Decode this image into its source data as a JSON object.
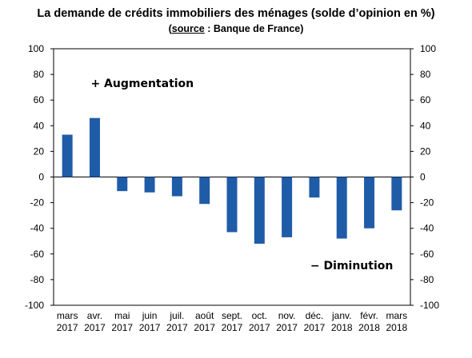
{
  "header": {
    "title": "La demande de crédits immobiliers des ménages (solde d’opinion en %)",
    "source_label": "source",
    "source_rest": " : Banque de France)",
    "source_open": "("
  },
  "colors": {
    "bar": "#1f5ca8",
    "axis": "#000000",
    "grid": "#c8c8c8"
  },
  "chart_data": {
    "type": "bar",
    "title": "La demande de crédits immobiliers des ménages (solde d’opinion en %)",
    "subtitle": "(source : Banque de France)",
    "categories": [
      [
        "mars",
        "2017"
      ],
      [
        "avr.",
        "2017"
      ],
      [
        "mai",
        "2017"
      ],
      [
        "juin",
        "2017"
      ],
      [
        "juil.",
        "2017"
      ],
      [
        "août",
        "2017"
      ],
      [
        "sept.",
        "2017"
      ],
      [
        "oct.",
        "2017"
      ],
      [
        "nov.",
        "2017"
      ],
      [
        "déc.",
        "2017"
      ],
      [
        "janv.",
        "2018"
      ],
      [
        "févr.",
        "2018"
      ],
      [
        "mars",
        "2018"
      ]
    ],
    "values": [
      33,
      46,
      -11,
      -12,
      -15,
      -21,
      -43,
      -52,
      -47,
      -16,
      -48,
      -40,
      -26
    ],
    "ylim": [
      -100,
      100
    ],
    "yticks": [
      100,
      80,
      60,
      40,
      20,
      0,
      -20,
      -40,
      -60,
      -80,
      -100
    ],
    "ytick_labels": [
      "100",
      "80",
      "60",
      "40",
      "20",
      "0",
      "-20",
      "-40",
      "-60",
      "-80",
      "-100"
    ],
    "y_axis_right_mirror": true,
    "grid": false,
    "annotations": [
      {
        "text": "+ Augmentation",
        "at_category": 1,
        "at_value": 70
      },
      {
        "text": "− Diminution",
        "at_category": 9,
        "at_value": -72
      }
    ]
  }
}
